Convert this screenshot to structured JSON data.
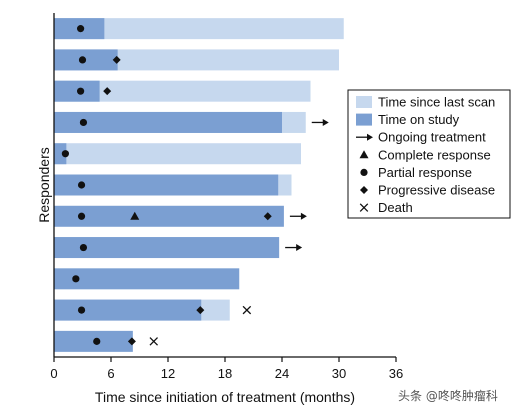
{
  "chart_data": {
    "type": "bar",
    "orientation": "horizontal-swimmer",
    "xlabel": "Time since initiation of treatment (months)",
    "ylabel": "Responders",
    "xlim": [
      0,
      36
    ],
    "xticks": [
      "0",
      "6",
      "12",
      "18",
      "24",
      "30",
      "36"
    ],
    "colors": {
      "time_since_last_scan": "#c6d8ee",
      "time_on_study": "#7b9fd2",
      "marker": "#111111"
    },
    "legend": {
      "placement": "right",
      "entries": [
        {
          "key": "time_since_last_scan",
          "label": "Time since last scan",
          "symbol": "light-bar"
        },
        {
          "key": "time_on_study",
          "label": "Time on study",
          "symbol": "dark-bar"
        },
        {
          "key": "ongoing",
          "label": "Ongoing treatment",
          "symbol": "arrow"
        },
        {
          "key": "complete",
          "label": "Complete response",
          "symbol": "triangle"
        },
        {
          "key": "partial",
          "label": "Partial response",
          "symbol": "circle"
        },
        {
          "key": "progressive",
          "label": "Progressive disease",
          "symbol": "diamond"
        },
        {
          "key": "death",
          "label": "Death",
          "symbol": "cross"
        }
      ]
    },
    "series": [
      {
        "name": "Time on study",
        "values": [
          5.3,
          6.7,
          4.8,
          24.0,
          1.3,
          23.6,
          24.2,
          23.7,
          19.5,
          15.5,
          8.3
        ]
      },
      {
        "name": "Time since last scan",
        "values": [
          30.5,
          30.0,
          27.0,
          26.5,
          26.0,
          25.0,
          null,
          null,
          null,
          18.5,
          null
        ]
      }
    ],
    "responders": [
      {
        "study": 5.3,
        "scan": 30.5,
        "markers": [
          {
            "type": "circle",
            "x": 2.8
          }
        ],
        "ongoing": false,
        "death": null
      },
      {
        "study": 6.7,
        "scan": 30.0,
        "markers": [
          {
            "type": "circle",
            "x": 3.0
          },
          {
            "type": "diamond",
            "x": 6.6
          }
        ],
        "ongoing": false,
        "death": null
      },
      {
        "study": 4.8,
        "scan": 27.0,
        "markers": [
          {
            "type": "circle",
            "x": 2.8
          },
          {
            "type": "diamond",
            "x": 5.6
          }
        ],
        "ongoing": false,
        "death": null
      },
      {
        "study": 24.0,
        "scan": 26.5,
        "markers": [
          {
            "type": "circle",
            "x": 3.1
          }
        ],
        "ongoing": true,
        "death": null
      },
      {
        "study": 1.3,
        "scan": 26.0,
        "markers": [
          {
            "type": "circle",
            "x": 1.2
          }
        ],
        "ongoing": false,
        "death": null
      },
      {
        "study": 23.6,
        "scan": 25.0,
        "markers": [
          {
            "type": "circle",
            "x": 2.9
          }
        ],
        "ongoing": false,
        "death": null
      },
      {
        "study": 24.2,
        "scan": null,
        "markers": [
          {
            "type": "circle",
            "x": 2.9
          },
          {
            "type": "triangle",
            "x": 8.5
          },
          {
            "type": "diamond",
            "x": 22.5
          }
        ],
        "ongoing": true,
        "death": null
      },
      {
        "study": 23.7,
        "scan": null,
        "markers": [
          {
            "type": "circle",
            "x": 3.1
          }
        ],
        "ongoing": true,
        "death": null
      },
      {
        "study": 19.5,
        "scan": null,
        "markers": [
          {
            "type": "circle",
            "x": 2.3
          }
        ],
        "ongoing": false,
        "death": null
      },
      {
        "study": 15.5,
        "scan": 18.5,
        "markers": [
          {
            "type": "circle",
            "x": 2.9
          },
          {
            "type": "diamond",
            "x": 15.4
          }
        ],
        "ongoing": false,
        "death": 20.3
      },
      {
        "study": 8.3,
        "scan": null,
        "markers": [
          {
            "type": "circle",
            "x": 4.5
          },
          {
            "type": "diamond",
            "x": 8.2
          }
        ],
        "ongoing": false,
        "death": 10.5
      }
    ]
  },
  "watermark": {
    "text": "头条 @咚咚肿瘤科"
  }
}
